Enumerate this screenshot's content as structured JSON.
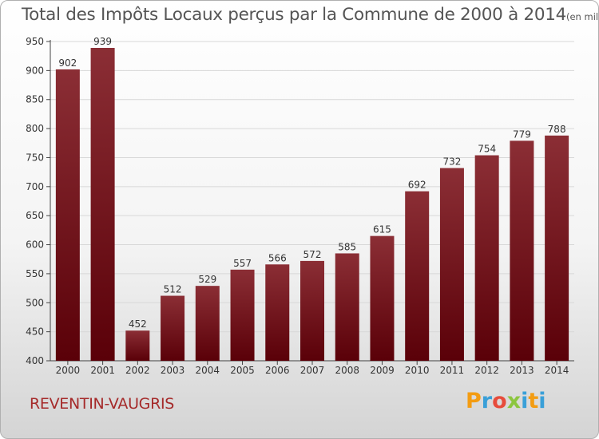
{
  "title": "Total des Impôts Locaux perçus par la Commune de 2000 à 2014",
  "unit_note": "(en milliers d'€)",
  "commune": "REVENTIN-VAUGRIS",
  "brand": "Proxiti",
  "colors": {
    "bar_top": "#8b2e35",
    "bar_bottom": "#5a0008",
    "title": "#555555",
    "commune": "#a52a2a"
  },
  "chart_data": {
    "type": "bar",
    "title": "Total des Impôts Locaux perçus par la Commune de 2000 à 2014",
    "xlabel": "",
    "ylabel": "",
    "unit": "milliers d'€",
    "categories": [
      "2000",
      "2001",
      "2002",
      "2003",
      "2004",
      "2005",
      "2006",
      "2007",
      "2008",
      "2009",
      "2010",
      "2011",
      "2012",
      "2013",
      "2014"
    ],
    "values": [
      902,
      939,
      452,
      512,
      529,
      557,
      566,
      572,
      585,
      615,
      692,
      732,
      754,
      779,
      788
    ],
    "ylim": [
      400,
      950
    ],
    "yticks": [
      400,
      450,
      500,
      550,
      600,
      650,
      700,
      750,
      800,
      850,
      900,
      950
    ],
    "grid": "horizontal"
  }
}
